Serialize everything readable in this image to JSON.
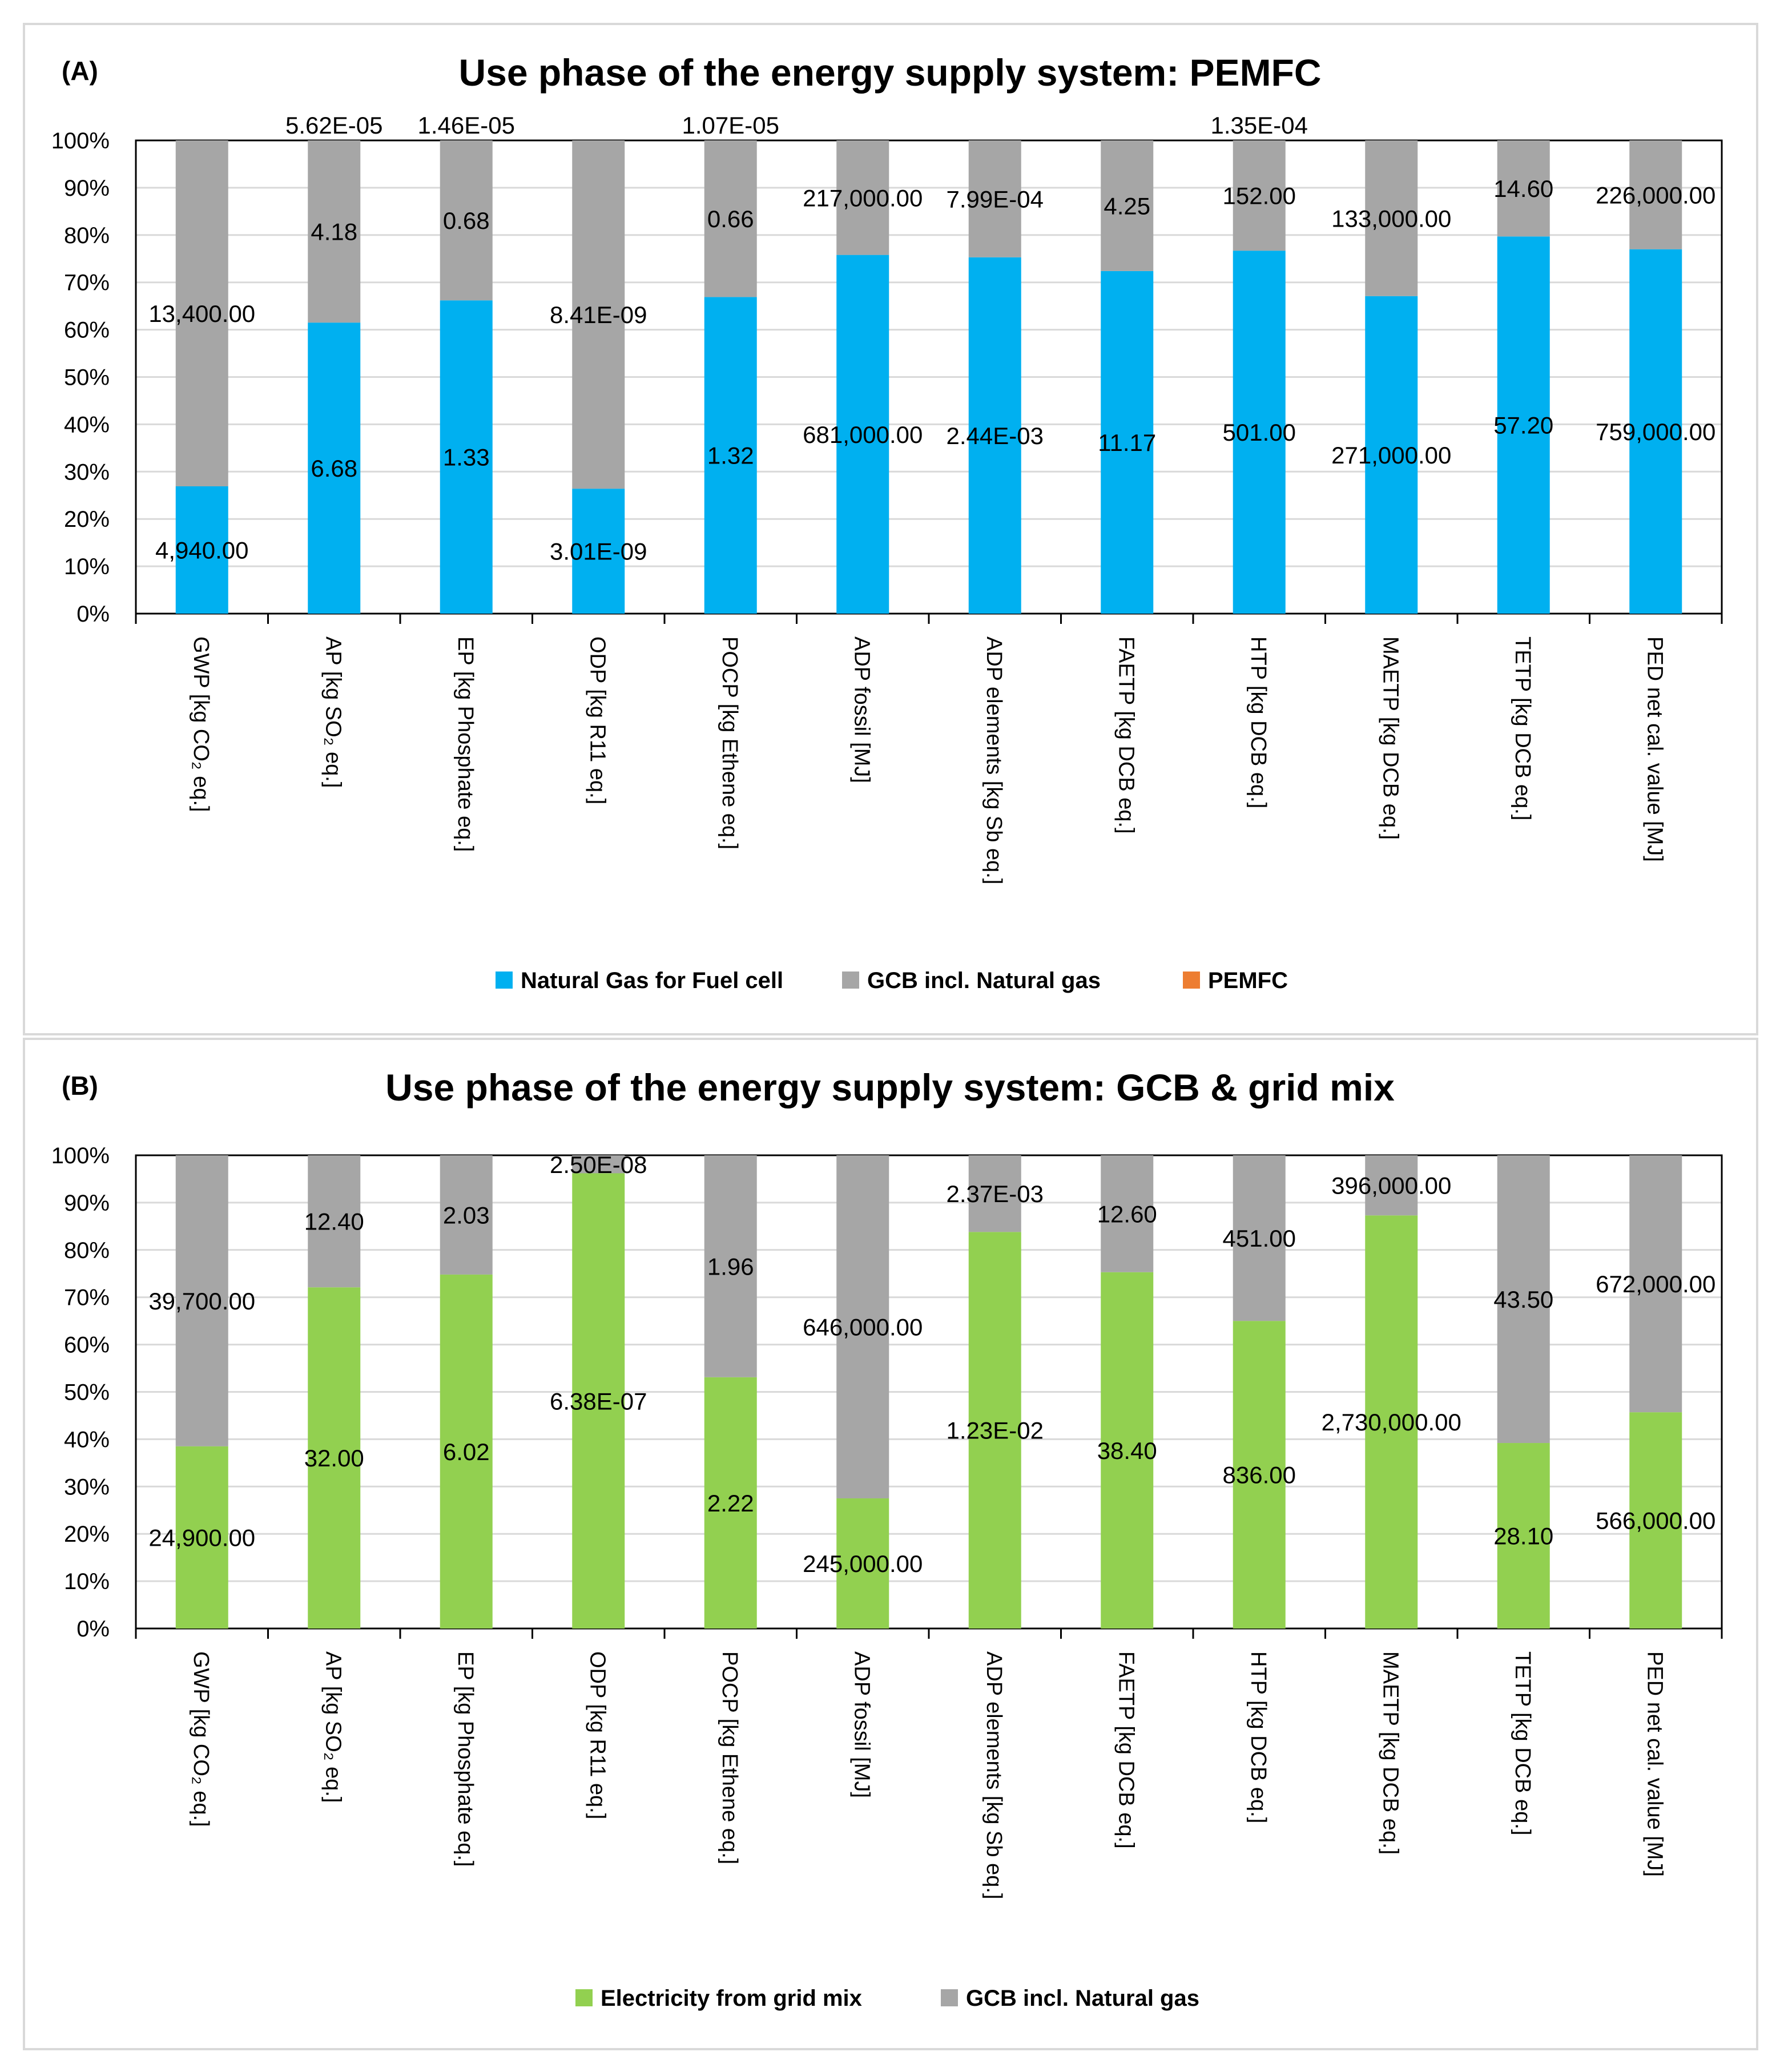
{
  "chart_data": [
    {
      "type": "bar",
      "stacked": "percent",
      "panel_label": "(A)",
      "title": "Use phase of the energy supply system: PEMFC",
      "ylim": [
        0,
        100
      ],
      "y_ticks": [
        "0%",
        "10%",
        "20%",
        "30%",
        "40%",
        "50%",
        "60%",
        "70%",
        "80%",
        "90%",
        "100%"
      ],
      "categories": [
        "GWP [kg CO₂ eq.]",
        "AP [kg SO₂ eq.]",
        "EP [kg Phosphate eq.]",
        "ODP [kg R11 eq.]",
        "POCP [kg Ethene eq.]",
        "ADP fossil [MJ]",
        "ADP elements [kg Sb eq.]",
        "FAETP [kg DCB eq.]",
        "HTP [kg DCB eq.]",
        "MAETP [kg DCB eq.]",
        "TETP [kg DCB eq.]",
        "PED net cal. value [MJ]"
      ],
      "series": [
        {
          "name": "Natural Gas for Fuel cell",
          "color": "#00b0f0",
          "values": [
            4940,
            6.68,
            1.33,
            3.01e-09,
            1.32,
            681000,
            0.00244,
            11.17,
            501,
            271000,
            57.2,
            759000
          ],
          "labels": [
            "4,940.00",
            "6.68",
            "1.33",
            "3.01E-09",
            "1.32",
            "681,000.00",
            "2.44E-03",
            "11.17",
            "501.00",
            "271,000.00",
            "57.20",
            "759,000.00"
          ],
          "percent": [
            26.9,
            61.5,
            66.2,
            26.4,
            66.9,
            75.8,
            75.3,
            72.4,
            76.7,
            67.1,
            79.7,
            77.0
          ]
        },
        {
          "name": "GCB incl. Natural gas",
          "color": "#a6a6a6",
          "values": [
            13400,
            4.18,
            0.68,
            8.41e-09,
            0.66,
            217000,
            0.000799,
            4.25,
            152,
            133000,
            14.6,
            226000
          ],
          "labels": [
            "13,400.00",
            "4.18",
            "0.68",
            "8.41E-09",
            "0.66",
            "217,000.00",
            "7.99E-04",
            "4.25",
            "152.00",
            "133,000.00",
            "14.60",
            "226,000.00"
          ],
          "percent": [
            73.1,
            38.5,
            33.8,
            73.6,
            33.1,
            24.2,
            24.7,
            27.6,
            23.3,
            32.9,
            20.3,
            23.0
          ]
        },
        {
          "name": "PEMFC",
          "color": "#ed7d31",
          "values": [
            null,
            5.62e-05,
            1.46e-05,
            null,
            1.07e-05,
            null,
            null,
            null,
            0.000135,
            null,
            null,
            null
          ],
          "labels": [
            "",
            "5.62E-05",
            "1.46E-05",
            "",
            "1.07E-05",
            "",
            "",
            "",
            "1.35E-04",
            "",
            "",
            ""
          ],
          "percent": [
            0,
            0,
            0,
            0,
            0,
            0,
            0,
            0,
            0,
            0,
            0,
            0
          ]
        }
      ],
      "legend": "bottom"
    },
    {
      "type": "bar",
      "stacked": "percent",
      "panel_label": "(B)",
      "title": "Use phase of the energy supply system: GCB & grid mix",
      "ylim": [
        0,
        100
      ],
      "y_ticks": [
        "0%",
        "10%",
        "20%",
        "30%",
        "40%",
        "50%",
        "60%",
        "70%",
        "80%",
        "90%",
        "100%"
      ],
      "categories": [
        "GWP [kg CO₂ eq.]",
        "AP [kg SO₂ eq.]",
        "EP [kg Phosphate eq.]",
        "ODP [kg R11 eq.]",
        "POCP [kg Ethene eq.]",
        "ADP fossil [MJ]",
        "ADP elements [kg Sb eq.]",
        "FAETP [kg DCB eq.]",
        "HTP [kg DCB eq.]",
        "MAETP [kg DCB eq.]",
        "TETP [kg DCB eq.]",
        "PED net cal. value [MJ]"
      ],
      "series": [
        {
          "name": "Electricity from grid mix",
          "color": "#92d050",
          "values": [
            24900,
            32,
            6.02,
            6.38e-07,
            2.22,
            245000,
            0.0123,
            38.4,
            836,
            2730000,
            28.1,
            566000
          ],
          "labels": [
            "24,900.00",
            "32.00",
            "6.02",
            "6.38E-07",
            "2.22",
            "245,000.00",
            "1.23E-02",
            "38.40",
            "836.00",
            "2,730,000.00",
            "28.10",
            "566,000.00"
          ],
          "percent": [
            38.5,
            72.1,
            74.8,
            96.2,
            53.1,
            27.5,
            83.8,
            75.3,
            65.0,
            87.3,
            39.2,
            45.7
          ]
        },
        {
          "name": "GCB incl. Natural gas",
          "color": "#a6a6a6",
          "values": [
            39700,
            12.4,
            2.03,
            2.5e-08,
            1.96,
            646000,
            0.00237,
            12.6,
            451,
            396000,
            43.5,
            672000
          ],
          "labels": [
            "39,700.00",
            "12.40",
            "2.03",
            "2.50E-08",
            "1.96",
            "646,000.00",
            "2.37E-03",
            "12.60",
            "451.00",
            "396,000.00",
            "43.50",
            "672,000.00"
          ],
          "percent": [
            61.5,
            27.9,
            25.2,
            3.8,
            46.9,
            72.5,
            16.2,
            24.7,
            35.0,
            12.7,
            60.8,
            54.3
          ]
        }
      ],
      "legend": "bottom"
    }
  ]
}
